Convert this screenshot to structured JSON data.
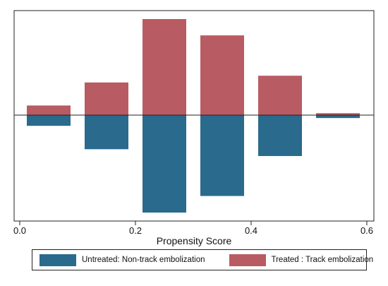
{
  "chart_data": {
    "type": "bar",
    "title": "",
    "xlabel": "Propensity Score",
    "ylabel": "",
    "xlim": [
      0.0,
      0.6
    ],
    "xticks": [
      "0.0",
      "0.2",
      "0.4",
      "0.6"
    ],
    "xtick_values": [
      0.0,
      0.2,
      0.4,
      0.6
    ],
    "ylim": [
      -1.0,
      1.0
    ],
    "bin_width": 0.1,
    "bin_starts": [
      0.0,
      0.1,
      0.2,
      0.3,
      0.4,
      0.5
    ],
    "series": [
      {
        "name": "Untreated: Non-track embolization",
        "color": "#2a6a8d",
        "direction": "down",
        "values": [
          0.11,
          0.35,
          1.0,
          0.83,
          0.42,
          0.03
        ]
      },
      {
        "name": "Treated : Track embolization",
        "color": "#b95b62",
        "direction": "up",
        "values": [
          0.1,
          0.34,
          1.0,
          0.83,
          0.41,
          0.02
        ]
      }
    ],
    "grid": false,
    "legend_position": "bottom"
  },
  "legend": {
    "untreated_label": "Untreated: Non-track embolization",
    "treated_label": "Treated : Track embolization"
  }
}
